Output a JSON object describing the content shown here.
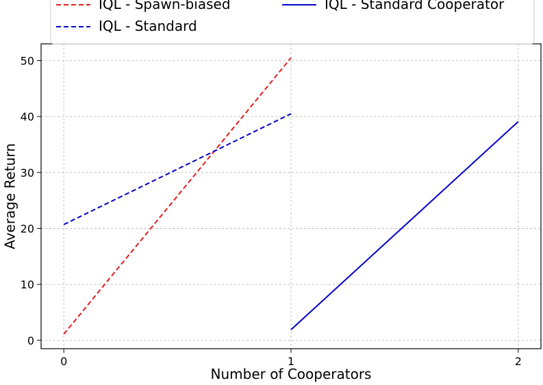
{
  "chart_data": {
    "type": "line",
    "title": "",
    "xlabel": "Number of Cooperators",
    "ylabel": "Average Return",
    "xlim": [
      -0.1,
      2.1
    ],
    "ylim": [
      -1.5,
      53
    ],
    "x_ticks": [
      0,
      1,
      2
    ],
    "y_ticks": [
      0,
      10,
      20,
      30,
      40,
      50
    ],
    "grid": true,
    "legend_placement": "top",
    "series": [
      {
        "name": "IQL - Spawn-biased",
        "color": "#e41a1c",
        "dash": "dashed",
        "x": [
          0,
          1
        ],
        "y": [
          1.1,
          50.5
        ]
      },
      {
        "name": "IQL - Standard",
        "color": "#0000cc",
        "dash": "dashed",
        "x": [
          0,
          1
        ],
        "y": [
          20.7,
          40.5
        ]
      },
      {
        "name": "IQL - Standard Cooperator",
        "color": "#0000cc",
        "dash": "solid",
        "x": [
          1,
          2
        ],
        "y": [
          1.9,
          39.1
        ]
      }
    ]
  }
}
